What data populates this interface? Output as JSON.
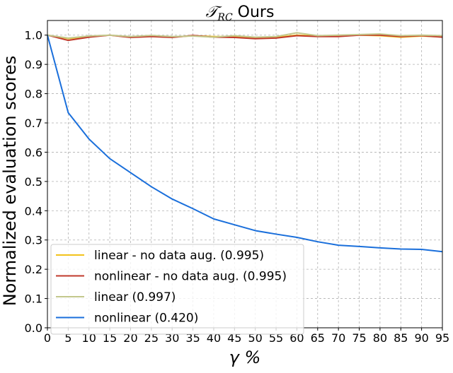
{
  "chart_data": {
    "type": "line",
    "title": "𝒯RC Ours",
    "title_main": "𝒯",
    "title_sub": "RC",
    "title_rest": " Ours",
    "xlabel": "γ %",
    "ylabel": "Normalized evaluation scores",
    "xlim": [
      0,
      95
    ],
    "ylim": [
      0.0,
      1.05
    ],
    "grid": true,
    "legend_position": "lower-left",
    "x": [
      0,
      5,
      10,
      15,
      20,
      25,
      30,
      35,
      40,
      45,
      50,
      55,
      60,
      65,
      70,
      75,
      80,
      85,
      90,
      95
    ],
    "x_ticks": [
      0,
      5,
      10,
      15,
      20,
      25,
      30,
      35,
      40,
      45,
      50,
      55,
      60,
      65,
      70,
      75,
      80,
      85,
      90,
      95
    ],
    "y_ticks": [
      0.0,
      0.1,
      0.2,
      0.3,
      0.4,
      0.5,
      0.6,
      0.7,
      0.8,
      0.9,
      1.0
    ],
    "series": [
      {
        "name": "linear - no data aug. (0.995)",
        "color": "#f2c21b",
        "values": [
          1.0,
          0.988,
          0.995,
          1.0,
          0.993,
          0.997,
          0.993,
          0.998,
          0.995,
          0.995,
          0.99,
          0.992,
          1.0,
          0.997,
          0.997,
          1.0,
          0.998,
          0.993,
          0.997,
          0.994
        ]
      },
      {
        "name": "nonlinear - no data aug. (0.995)",
        "color": "#c0392b",
        "values": [
          1.0,
          0.982,
          0.993,
          1.0,
          0.992,
          0.995,
          0.992,
          0.999,
          0.993,
          0.992,
          0.988,
          0.99,
          0.998,
          0.995,
          0.995,
          1.0,
          1.0,
          0.995,
          0.998,
          0.993
        ]
      },
      {
        "name": "linear (0.997)",
        "color": "#c3c88c",
        "values": [
          1.0,
          0.99,
          0.997,
          1.0,
          0.995,
          0.999,
          0.995,
          0.997,
          0.993,
          0.998,
          0.993,
          0.995,
          1.008,
          0.998,
          1.0,
          1.002,
          1.004,
          0.998,
          1.0,
          0.998
        ]
      },
      {
        "name": "nonlinear (0.420)",
        "color": "#1a6fdb",
        "values": [
          1.0,
          0.735,
          0.645,
          0.578,
          0.53,
          0.482,
          0.44,
          0.407,
          0.372,
          0.352,
          0.332,
          0.32,
          0.309,
          0.294,
          0.282,
          0.278,
          0.273,
          0.269,
          0.268,
          0.26
        ]
      }
    ]
  }
}
